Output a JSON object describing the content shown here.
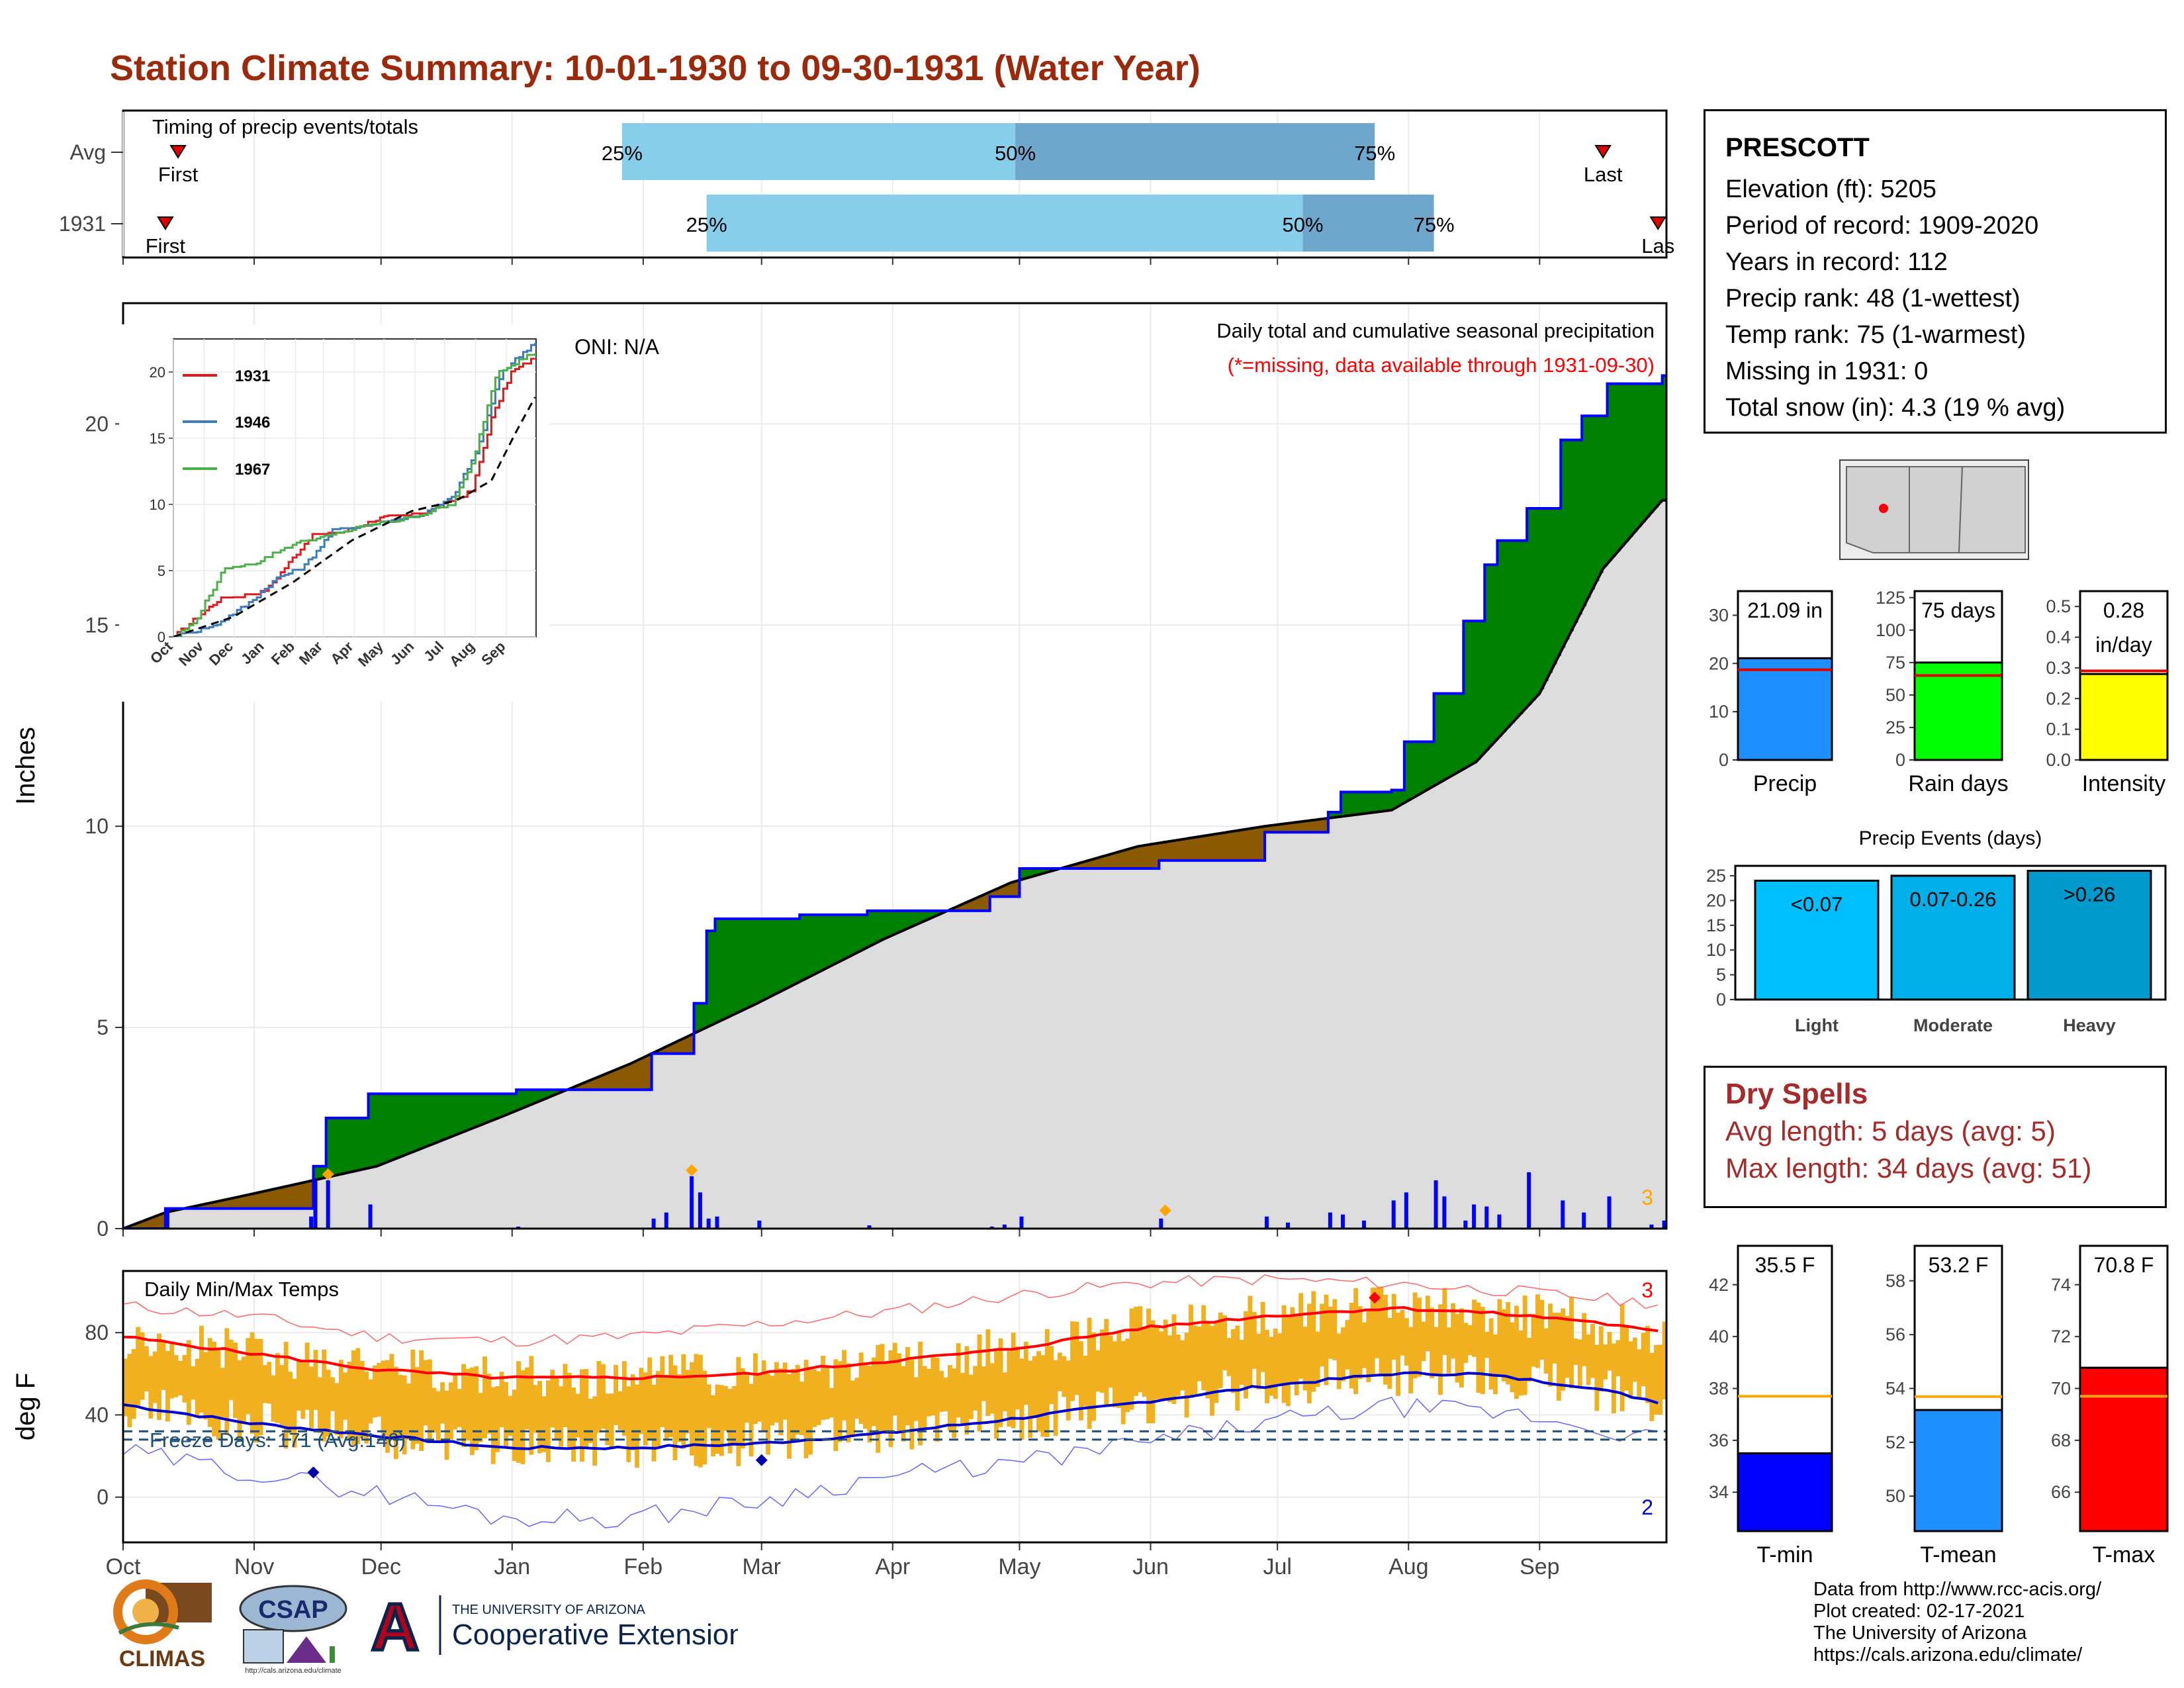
{
  "title": "Station Climate Summary: 10-01-1930 to 09-30-1931 (Water Year)",
  "colors": {
    "title": "#9b2a0c",
    "avg_line": "#000000",
    "surplus": "#008000",
    "deficit": "#8b5a00",
    "cum_line": "#0000ff",
    "avg_fill": "#dddddd",
    "daily_bar": "#0000ff",
    "temp_bar": "#f0b020",
    "tmax_line": "#ff0000",
    "tmin_line": "#0000cc",
    "freeze_line": "#1f4e79",
    "q_light": "#87ceeb",
    "q_dark": "#6fa6cc"
  },
  "station": {
    "name": "PRESCOTT",
    "lines": [
      "Elevation (ft): 5205",
      "Period of record: 1909-2020",
      "Years in record: 112",
      "Precip rank: 48 (1-wettest)",
      "Temp rank: 75 (1-warmest)",
      "Missing in 1931: 0",
      "Total snow (in): 4.3 (19 % avg)"
    ]
  },
  "dry_spells": {
    "title": "Dry Spells",
    "avg": "Avg length: 5 days (avg: 5)",
    "max": "Max length: 34 days (avg: 51)"
  },
  "credits": [
    "Data from http://www.rcc-acis.org/",
    "Plot created: 02-17-2021",
    "The University of Arizona",
    "https://cals.arizona.edu/climate/"
  ],
  "logos": {
    "climas": "CLIMAS",
    "csap": "CSAP",
    "csap_url": "http://cals.arizona.edu/climate",
    "ua_top": "THE UNIVERSITY OF ARIZONA",
    "ua_bottom": "Cooperative Extension",
    "ua_mark": "A"
  },
  "chart_data": [
    {
      "id": "timing",
      "type": "bar",
      "title": "Timing of precip events/totals",
      "rows": [
        {
          "label": "Avg",
          "first": 13,
          "q25": 118,
          "q50": 211,
          "q75": 296,
          "last": 350,
          "first_label": "First",
          "last_label": "Last"
        },
        {
          "label": "1931",
          "first": 10,
          "q25": 138,
          "q50": 279,
          "q75": 310,
          "last": 363,
          "first_label": "First",
          "last_label": "Las"
        }
      ],
      "q_labels": [
        "25%",
        "50%",
        "75%"
      ]
    },
    {
      "id": "precip",
      "type": "area",
      "ylabel": "Inches",
      "ylim": [
        0,
        23
      ],
      "yticks": [
        0,
        5,
        10,
        15,
        20
      ],
      "annotation_oni": "ONI: N/A",
      "annotation_title": "Daily total and cumulative seasonal precipitation",
      "annotation_missing": "(*=missing, data available through 1931-09-30)",
      "count_label": "3",
      "avg_cum": [
        [
          0,
          0
        ],
        [
          10,
          0.4
        ],
        [
          30,
          0.85
        ],
        [
          60,
          1.55
        ],
        [
          90,
          2.8
        ],
        [
          120,
          4.1
        ],
        [
          150,
          5.6
        ],
        [
          180,
          7.2
        ],
        [
          210,
          8.6
        ],
        [
          240,
          9.5
        ],
        [
          270,
          10.0
        ],
        [
          300,
          10.4
        ],
        [
          320,
          11.6
        ],
        [
          335,
          13.3
        ],
        [
          350,
          16.4
        ],
        [
          364,
          18.1
        ]
      ],
      "obs_cum": [
        [
          0,
          0
        ],
        [
          10,
          0.5
        ],
        [
          44,
          0.5
        ],
        [
          45,
          1.55
        ],
        [
          48,
          2.75
        ],
        [
          58,
          3.35
        ],
        [
          93,
          3.45
        ],
        [
          125,
          4.35
        ],
        [
          135,
          5.6
        ],
        [
          138,
          7.4
        ],
        [
          140,
          7.7
        ],
        [
          160,
          7.8
        ],
        [
          176,
          7.9
        ],
        [
          205,
          8.25
        ],
        [
          212,
          8.95
        ],
        [
          245,
          9.15
        ],
        [
          270,
          9.85
        ],
        [
          285,
          10.35
        ],
        [
          288,
          10.85
        ],
        [
          300,
          10.9
        ],
        [
          303,
          12.1
        ],
        [
          310,
          13.3
        ],
        [
          317,
          15.1
        ],
        [
          322,
          16.5
        ],
        [
          325,
          17.1
        ],
        [
          332,
          17.9
        ],
        [
          340,
          19.6
        ],
        [
          345,
          20.2
        ],
        [
          351,
          21.0
        ],
        [
          361,
          21.0
        ],
        [
          364,
          21.2
        ]
      ],
      "daily": [
        [
          10,
          0.5
        ],
        [
          44,
          0.3
        ],
        [
          45,
          1.2
        ],
        [
          48,
          1.2
        ],
        [
          58,
          0.6
        ],
        [
          93,
          0.05
        ],
        [
          125,
          0.25
        ],
        [
          128,
          0.4
        ],
        [
          134,
          1.3
        ],
        [
          136,
          0.9
        ],
        [
          138,
          0.25
        ],
        [
          140,
          0.3
        ],
        [
          150,
          0.2
        ],
        [
          176,
          0.08
        ],
        [
          205,
          0.05
        ],
        [
          208,
          0.1
        ],
        [
          212,
          0.3
        ],
        [
          245,
          0.25
        ],
        [
          270,
          0.3
        ],
        [
          275,
          0.15
        ],
        [
          285,
          0.4
        ],
        [
          288,
          0.35
        ],
        [
          293,
          0.2
        ],
        [
          300,
          0.7
        ],
        [
          303,
          0.9
        ],
        [
          310,
          1.2
        ],
        [
          312,
          0.8
        ],
        [
          317,
          0.2
        ],
        [
          319,
          0.6
        ],
        [
          322,
          0.55
        ],
        [
          325,
          0.35
        ],
        [
          332,
          1.4
        ],
        [
          340,
          0.7
        ],
        [
          345,
          0.4
        ],
        [
          351,
          0.8
        ],
        [
          361,
          0.1
        ],
        [
          364,
          0.2
        ]
      ],
      "max_markers": [
        [
          48,
          1.35
        ],
        [
          134,
          1.45
        ],
        [
          246,
          0.45
        ]
      ]
    },
    {
      "id": "inset",
      "type": "line",
      "ylim": [
        0,
        22.5
      ],
      "yticks": [
        0,
        5,
        10,
        15,
        20
      ],
      "categories": [
        "Oct",
        "Nov",
        "Dec",
        "Jan",
        "Feb",
        "Mar",
        "Apr",
        "May",
        "Jun",
        "Jul",
        "Aug",
        "Sep"
      ],
      "series": [
        {
          "name": "1931",
          "color": "#e31a1c",
          "points": [
            [
              0,
              0
            ],
            [
              45,
              2.8
            ],
            [
              92,
              3.4
            ],
            [
              138,
              7.6
            ],
            [
              165,
              7.8
            ],
            [
              210,
              9.0
            ],
            [
              245,
              9.2
            ],
            [
              270,
              9.9
            ],
            [
              300,
              11.0
            ],
            [
              320,
              16.5
            ],
            [
              340,
              20.0
            ],
            [
              364,
              21.1
            ]
          ]
        },
        {
          "name": "1946",
          "color": "#3b7cc0",
          "points": [
            [
              0,
              0
            ],
            [
              40,
              0.8
            ],
            [
              75,
              2.5
            ],
            [
              105,
              4.5
            ],
            [
              130,
              5.2
            ],
            [
              160,
              8.0
            ],
            [
              200,
              8.5
            ],
            [
              250,
              9.2
            ],
            [
              280,
              10.5
            ],
            [
              305,
              14.0
            ],
            [
              330,
              20.0
            ],
            [
              364,
              22.3
            ]
          ]
        },
        {
          "name": "1967",
          "color": "#4daf4a",
          "points": [
            [
              0,
              0
            ],
            [
              20,
              1.0
            ],
            [
              50,
              5.0
            ],
            [
              80,
              5.5
            ],
            [
              120,
              7.0
            ],
            [
              150,
              7.5
            ],
            [
              190,
              8.3
            ],
            [
              240,
              9.0
            ],
            [
              280,
              10.0
            ],
            [
              300,
              13.0
            ],
            [
              325,
              20.0
            ],
            [
              364,
              21.5
            ]
          ]
        },
        {
          "name": "",
          "color": "#000000",
          "dashed": true,
          "points": [
            [
              0,
              0
            ],
            [
              60,
              1.5
            ],
            [
              120,
              4.1
            ],
            [
              180,
              7.3
            ],
            [
              240,
              9.5
            ],
            [
              285,
              10.3
            ],
            [
              320,
              11.8
            ],
            [
              345,
              15.5
            ],
            [
              364,
              18.1
            ]
          ]
        }
      ]
    },
    {
      "id": "temps",
      "type": "line",
      "title": "Daily Min/Max Temps",
      "ylabel": "deg F",
      "ylim": [
        -22,
        110
      ],
      "yticks": [
        0,
        40,
        80
      ],
      "categories": [
        "Oct",
        "Nov",
        "Dec",
        "Jan",
        "Feb",
        "Mar",
        "Apr",
        "May",
        "Jun",
        "Jul",
        "Aug",
        "Sep"
      ],
      "freeze_label": "Freeze Days: 171 (Avg:146)",
      "top_count": "3",
      "bottom_count": "2",
      "avg_max": [
        [
          0,
          78
        ],
        [
          30,
          70
        ],
        [
          60,
          62
        ],
        [
          90,
          58
        ],
        [
          120,
          58
        ],
        [
          150,
          60
        ],
        [
          180,
          66
        ],
        [
          210,
          72
        ],
        [
          240,
          82
        ],
        [
          270,
          88
        ],
        [
          300,
          92
        ],
        [
          320,
          90
        ],
        [
          345,
          86
        ],
        [
          364,
          80
        ]
      ],
      "avg_min": [
        [
          0,
          45
        ],
        [
          30,
          36
        ],
        [
          60,
          30
        ],
        [
          90,
          24
        ],
        [
          120,
          24
        ],
        [
          150,
          26
        ],
        [
          180,
          31
        ],
        [
          210,
          38
        ],
        [
          240,
          46
        ],
        [
          270,
          54
        ],
        [
          300,
          60
        ],
        [
          320,
          60
        ],
        [
          345,
          54
        ],
        [
          364,
          46
        ]
      ],
      "rec_high": [
        [
          0,
          93
        ],
        [
          30,
          88
        ],
        [
          60,
          78
        ],
        [
          90,
          76
        ],
        [
          120,
          78
        ],
        [
          150,
          84
        ],
        [
          180,
          90
        ],
        [
          210,
          98
        ],
        [
          240,
          104
        ],
        [
          270,
          106
        ],
        [
          300,
          104
        ],
        [
          330,
          100
        ],
        [
          364,
          94
        ]
      ],
      "rec_low": [
        [
          0,
          22
        ],
        [
          30,
          12
        ],
        [
          60,
          2
        ],
        [
          90,
          -10
        ],
        [
          120,
          -10
        ],
        [
          150,
          -2
        ],
        [
          180,
          10
        ],
        [
          210,
          16
        ],
        [
          240,
          26
        ],
        [
          270,
          36
        ],
        [
          300,
          44
        ],
        [
          330,
          40
        ],
        [
          364,
          28
        ]
      ],
      "freeze_levels": [
        32,
        28
      ],
      "extreme_markers": [
        {
          "day": 296,
          "value": 97,
          "color": "#ff0000"
        },
        {
          "day": 45,
          "value": 12,
          "color": "#0000aa"
        },
        {
          "day": 151,
          "value": 18,
          "color": "#0000aa"
        }
      ]
    },
    {
      "id": "precip_total",
      "type": "bar",
      "ylim": [
        0,
        35
      ],
      "yticks": [
        0,
        10,
        20,
        30
      ],
      "categories": [
        "Precip"
      ],
      "values": [
        21.09
      ],
      "avg": 18.7,
      "label": "21.09 in",
      "color": "#1e90ff"
    },
    {
      "id": "rain_days",
      "type": "bar",
      "ylim": [
        0,
        130
      ],
      "yticks": [
        0,
        25,
        50,
        75,
        100,
        125
      ],
      "categories": [
        "Rain days"
      ],
      "values": [
        75
      ],
      "avg": 65,
      "label": "75 days",
      "color": "#00ff00"
    },
    {
      "id": "intensity",
      "type": "bar",
      "ylim": [
        0,
        0.55
      ],
      "yticks": [
        0.0,
        0.1,
        0.2,
        0.3,
        0.4,
        0.5
      ],
      "categories": [
        "Intensity"
      ],
      "values": [
        0.28
      ],
      "avg": 0.29,
      "label": "0.28",
      "label2": "in/day",
      "color": "#ffff00"
    },
    {
      "id": "events",
      "type": "bar",
      "title": "Precip Events (days)",
      "ylim": [
        0,
        27
      ],
      "yticks": [
        0,
        5,
        10,
        15,
        20,
        25
      ],
      "categories": [
        "Light",
        "Moderate",
        "Heavy"
      ],
      "values": [
        24,
        25,
        26
      ],
      "bar_labels": [
        "<0.07",
        "0.07-0.26",
        ">0.26"
      ],
      "colors": [
        "#00bfff",
        "#00aee8",
        "#0099cc"
      ]
    },
    {
      "id": "tmin",
      "type": "bar",
      "ylim": [
        32.5,
        43.5
      ],
      "yticks": [
        34,
        36,
        38,
        40,
        42
      ],
      "categories": [
        "T-min"
      ],
      "values": [
        35.5
      ],
      "avg": 37.7,
      "label": "35.5 F",
      "color": "#0000ff"
    },
    {
      "id": "tmean",
      "type": "bar",
      "ylim": [
        48.7,
        59.3
      ],
      "yticks": [
        50,
        52,
        54,
        56,
        58
      ],
      "categories": [
        "T-mean"
      ],
      "values": [
        53.2
      ],
      "avg": 53.7,
      "label": "53.2 F",
      "color": "#1e90ff"
    },
    {
      "id": "tmax",
      "type": "bar",
      "ylim": [
        64.5,
        75.5
      ],
      "yticks": [
        66,
        68,
        70,
        72,
        74
      ],
      "categories": [
        "T-max"
      ],
      "values": [
        70.8
      ],
      "avg": 69.7,
      "label": "70.8 F",
      "color": "#ff0000"
    }
  ]
}
